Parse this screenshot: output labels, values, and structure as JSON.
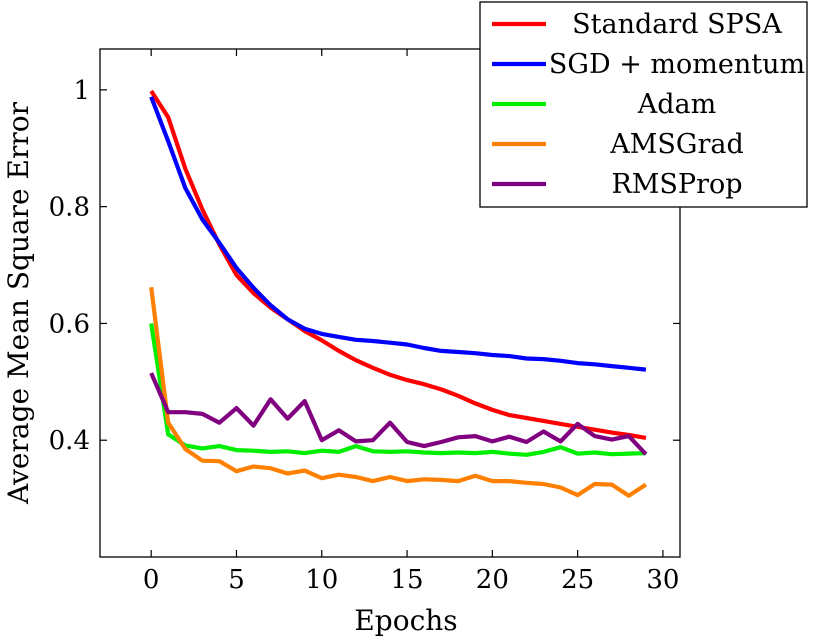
{
  "chart_data": {
    "type": "line",
    "title": "",
    "xlabel": "Epochs",
    "ylabel": "Average Mean Square Error",
    "xlim": [
      -3,
      31
    ],
    "ylim": [
      0.2,
      1.07
    ],
    "xticks": [
      0,
      5,
      10,
      15,
      20,
      25,
      30
    ],
    "xtick_labels": [
      "0",
      "5",
      "10",
      "15",
      "20",
      "25",
      "30"
    ],
    "yticks": [
      0.4,
      0.6,
      0.8,
      1.0
    ],
    "ytick_labels": [
      "0.4",
      "0.6",
      "0.8",
      "1"
    ],
    "grid": false,
    "legend_position": "top-right",
    "x": [
      0,
      1,
      2,
      3,
      4,
      5,
      6,
      7,
      8,
      9,
      10,
      11,
      12,
      13,
      14,
      15,
      16,
      17,
      18,
      19,
      20,
      21,
      22,
      23,
      24,
      25,
      26,
      27,
      28,
      29
    ],
    "series": [
      {
        "name": "Standard SPSA",
        "color": "#ff0000",
        "values": [
          0.998,
          0.953,
          0.865,
          0.795,
          0.735,
          0.683,
          0.652,
          0.627,
          0.607,
          0.587,
          0.571,
          0.553,
          0.537,
          0.524,
          0.512,
          0.503,
          0.496,
          0.487,
          0.476,
          0.463,
          0.452,
          0.443,
          0.438,
          0.433,
          0.428,
          0.423,
          0.418,
          0.413,
          0.409,
          0.404
        ]
      },
      {
        "name": "SGD + momentum",
        "color": "#0000ff",
        "values": [
          0.988,
          0.912,
          0.832,
          0.778,
          0.738,
          0.695,
          0.661,
          0.631,
          0.607,
          0.591,
          0.582,
          0.577,
          0.572,
          0.57,
          0.567,
          0.564,
          0.558,
          0.553,
          0.551,
          0.549,
          0.546,
          0.544,
          0.54,
          0.539,
          0.536,
          0.532,
          0.53,
          0.527,
          0.524,
          0.521
        ]
      },
      {
        "name": "Adam",
        "color": "#00ee00",
        "values": [
          0.6,
          0.41,
          0.391,
          0.386,
          0.39,
          0.383,
          0.382,
          0.38,
          0.381,
          0.378,
          0.382,
          0.38,
          0.39,
          0.381,
          0.38,
          0.381,
          0.379,
          0.378,
          0.379,
          0.378,
          0.38,
          0.377,
          0.375,
          0.38,
          0.388,
          0.377,
          0.379,
          0.376,
          0.377,
          0.378
        ]
      },
      {
        "name": "AMSGrad",
        "color": "#ff8000",
        "values": [
          0.662,
          0.43,
          0.385,
          0.365,
          0.364,
          0.347,
          0.355,
          0.352,
          0.343,
          0.348,
          0.335,
          0.341,
          0.337,
          0.33,
          0.337,
          0.33,
          0.333,
          0.332,
          0.33,
          0.339,
          0.33,
          0.33,
          0.327,
          0.325,
          0.319,
          0.306,
          0.325,
          0.324,
          0.305,
          0.324
        ]
      },
      {
        "name": "RMSProp",
        "color": "#800080",
        "values": [
          0.515,
          0.448,
          0.448,
          0.445,
          0.43,
          0.455,
          0.425,
          0.47,
          0.437,
          0.467,
          0.4,
          0.417,
          0.398,
          0.4,
          0.43,
          0.397,
          0.39,
          0.397,
          0.405,
          0.407,
          0.398,
          0.406,
          0.397,
          0.415,
          0.398,
          0.428,
          0.407,
          0.401,
          0.407,
          0.376
        ]
      }
    ]
  }
}
